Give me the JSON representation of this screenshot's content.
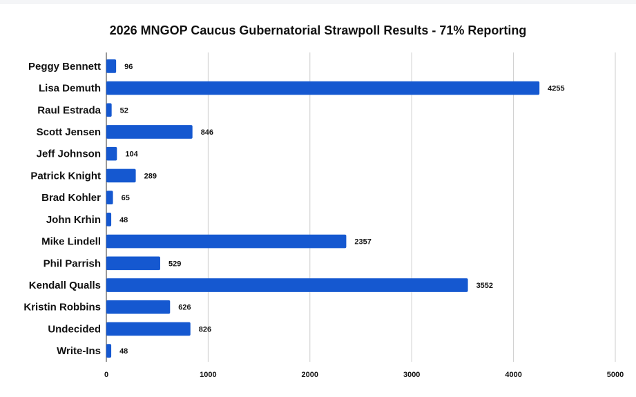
{
  "chart_data": {
    "type": "bar",
    "orientation": "horizontal",
    "title": "2026 MNGOP Caucus Gubernatorial Strawpoll Results - 71% Reporting",
    "categories": [
      "Peggy Bennett",
      "Lisa Demuth",
      "Raul Estrada",
      "Scott Jensen",
      "Jeff Johnson",
      "Patrick Knight",
      "Brad Kohler",
      "John Krhin",
      "Mike Lindell",
      "Phil Parrish",
      "Kendall Qualls",
      "Kristin Robbins",
      "Undecided",
      "Write-Ins"
    ],
    "values": [
      96,
      4255,
      52,
      846,
      104,
      289,
      65,
      48,
      2357,
      529,
      3552,
      626,
      826,
      48
    ],
    "xlim": [
      0,
      5000
    ],
    "xticks": [
      0,
      1000,
      2000,
      3000,
      4000,
      5000
    ],
    "grid": true,
    "data_labels": true,
    "bar_color": "#1558d0"
  }
}
